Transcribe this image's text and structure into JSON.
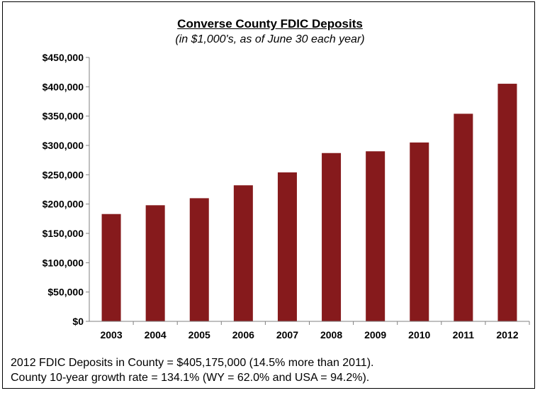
{
  "chart_data": {
    "type": "bar",
    "title": "Converse County FDIC Deposits",
    "subtitle": "(in $1,000's, as of  June 30 each year)",
    "categories": [
      "2003",
      "2004",
      "2005",
      "2006",
      "2007",
      "2008",
      "2009",
      "2010",
      "2011",
      "2012"
    ],
    "values": [
      183000,
      198000,
      210000,
      232000,
      254000,
      287000,
      290000,
      305000,
      354000,
      405175
    ],
    "yticks": [
      "$0",
      "$50,000",
      "$100,000",
      "$150,000",
      "$200,000",
      "$250,000",
      "$300,000",
      "$350,000",
      "$400,000",
      "$450,000"
    ],
    "ylim": [
      0,
      450000
    ],
    "ystep": 50000,
    "bar_color": "#861a1c",
    "grid": false,
    "legend": "none"
  },
  "notes": [
    "2012 FDIC Deposits in County = $405,175,000 (14.5% more than 2011).",
    "County 10-year growth rate = 134.1% (WY = 62.0% and USA = 94.2%)."
  ]
}
